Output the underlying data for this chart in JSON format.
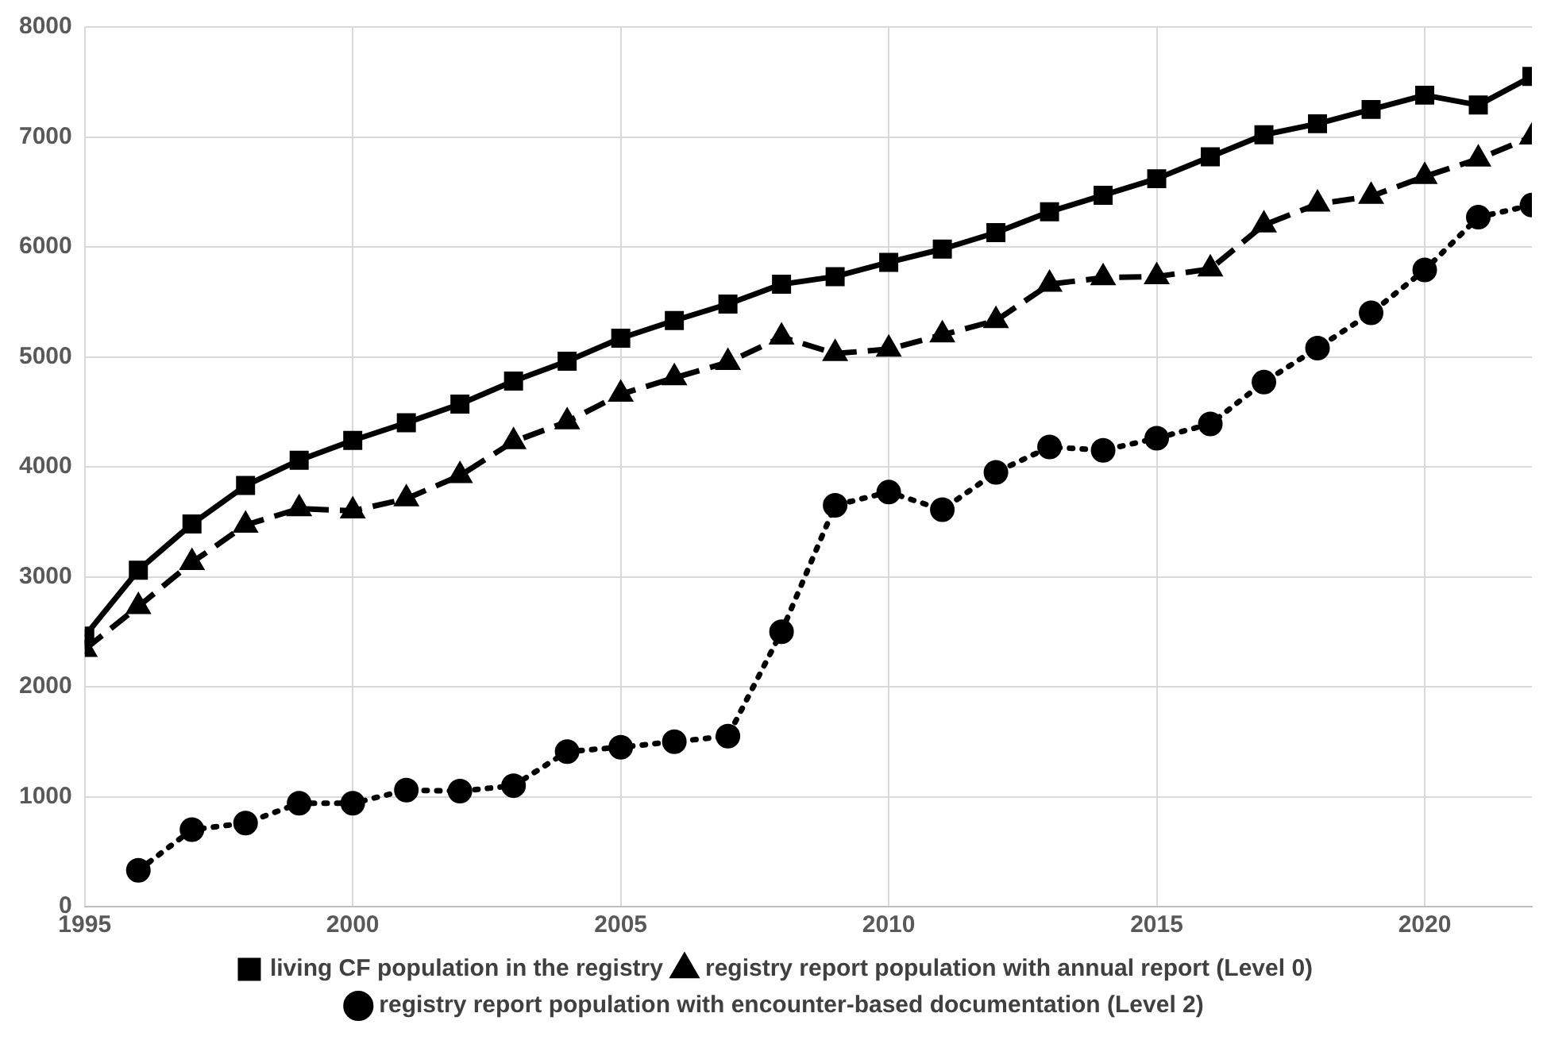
{
  "chart_data": {
    "type": "line",
    "x": [
      1995,
      1996,
      1997,
      1998,
      1999,
      2000,
      2001,
      2002,
      2003,
      2004,
      2005,
      2006,
      2007,
      2008,
      2009,
      2010,
      2011,
      2012,
      2013,
      2014,
      2015,
      2016,
      2017,
      2018,
      2019,
      2020,
      2021,
      2022
    ],
    "series": [
      {
        "name": "living CF population in the registry",
        "color": "#000000",
        "marker": "square",
        "line_style": "solid",
        "values": [
          2460,
          3060,
          3480,
          3830,
          4060,
          4240,
          4400,
          4570,
          4780,
          4960,
          5170,
          5330,
          5480,
          5660,
          5730,
          5860,
          5980,
          6130,
          6320,
          6470,
          6620,
          6820,
          7020,
          7120,
          7250,
          7380,
          7290,
          7550
        ]
      },
      {
        "name": "registry report population with annual report (Level 0)",
        "color": "#000000",
        "marker": "triangle",
        "line_style": "dashed",
        "values": [
          2340,
          2730,
          3130,
          3470,
          3620,
          3600,
          3710,
          3920,
          4230,
          4410,
          4660,
          4810,
          4950,
          5180,
          5030,
          5070,
          5200,
          5330,
          5660,
          5720,
          5730,
          5800,
          6200,
          6390,
          6460,
          6640,
          6800,
          7000
        ]
      },
      {
        "name": "registry report population with encounter-based documentation (Level 2)",
        "color": "#000000",
        "marker": "circle",
        "line_style": "dotted",
        "values": [
          null,
          330,
          700,
          760,
          940,
          940,
          1060,
          1050,
          1100,
          1410,
          1450,
          1500,
          1550,
          2500,
          3650,
          3770,
          3610,
          3950,
          4180,
          4150,
          4260,
          4390,
          4770,
          5080,
          5400,
          5790,
          6270,
          6380
        ]
      }
    ],
    "xlim": [
      1995,
      2022
    ],
    "xticks": [
      1995,
      2000,
      2005,
      2010,
      2015,
      2020
    ],
    "ylim": [
      0,
      8000
    ],
    "yticks": [
      0,
      1000,
      2000,
      3000,
      4000,
      5000,
      6000,
      7000,
      8000
    ],
    "grid": true,
    "legend": "bottom"
  }
}
